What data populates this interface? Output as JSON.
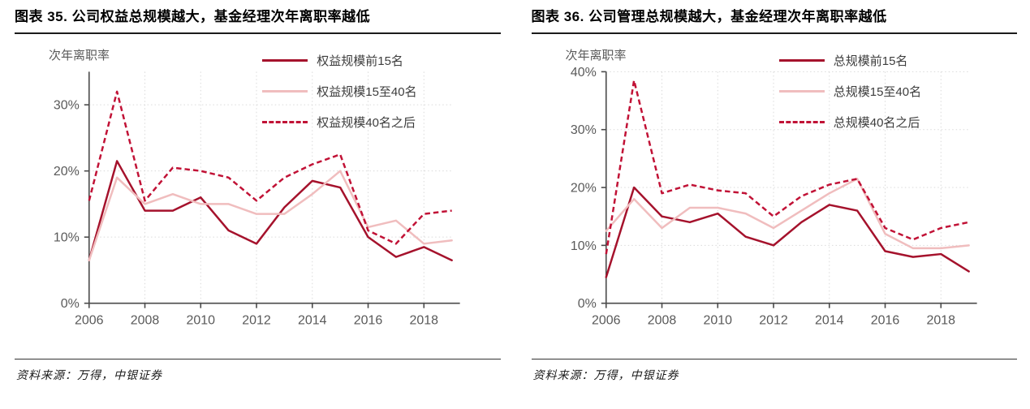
{
  "theme": {
    "background": "#ffffff",
    "title_color": "#000000",
    "rule_color": "#1c1c1c",
    "axis_line_color": "#4a4a4a",
    "tick_text_color": "#595959",
    "grid_color": "#dadada",
    "dark_red": "#A5122C",
    "light_pink": "#F0BDBE",
    "bright_red": "#C11236"
  },
  "panels": [
    {
      "source_label": "资料来源：万得，中银证券"
    },
    {
      "source_label": "资料来源：万得，中银证券"
    }
  ],
  "chart_data": [
    {
      "type": "line",
      "title": "图表 35. 公司权益总规模越大，基金经理次年离职率越低",
      "ylabel": "次年离职率",
      "xlabel": "",
      "x": [
        2006,
        2007,
        2008,
        2009,
        2010,
        2011,
        2012,
        2013,
        2014,
        2015,
        2016,
        2017,
        2018,
        2019
      ],
      "xtick_labels": [
        "2006",
        "2008",
        "2010",
        "2012",
        "2014",
        "2016",
        "2018"
      ],
      "yticks": [
        0,
        10,
        20,
        30
      ],
      "ytick_suffix": "%",
      "ylim": [
        0,
        35
      ],
      "grid": "dotted",
      "legend_position": "top-right",
      "series": [
        {
          "name": "权益规模前15名",
          "color": "#A5122C",
          "style": "solid",
          "values": [
            6.5,
            21.5,
            14,
            14,
            16,
            11,
            9,
            14.5,
            18.5,
            17.5,
            10,
            7,
            8.5,
            6.5
          ]
        },
        {
          "name": "权益规模15至40名",
          "color": "#F0BDBE",
          "style": "solid",
          "values": [
            6.5,
            19,
            15,
            16.5,
            15,
            15,
            13.5,
            13.5,
            16.5,
            20,
            11.5,
            12.5,
            9,
            9.5
          ]
        },
        {
          "name": "权益规模40名之后",
          "color": "#C11236",
          "style": "dashed",
          "values": [
            15.5,
            32,
            15.5,
            20.5,
            20,
            19,
            15.5,
            19,
            21,
            22.5,
            11,
            9,
            13.5,
            14
          ]
        }
      ]
    },
    {
      "type": "line",
      "title": "图表 36. 公司管理总规模越大，基金经理次年离职率越低",
      "ylabel": "次年离职率",
      "xlabel": "",
      "x": [
        2006,
        2007,
        2008,
        2009,
        2010,
        2011,
        2012,
        2013,
        2014,
        2015,
        2016,
        2017,
        2018,
        2019
      ],
      "xtick_labels": [
        "2006",
        "2008",
        "2010",
        "2012",
        "2014",
        "2016",
        "2018"
      ],
      "yticks": [
        0,
        10,
        20,
        30,
        40
      ],
      "ytick_suffix": "%",
      "ylim": [
        0,
        40
      ],
      "grid": "dotted",
      "legend_position": "top-right",
      "series": [
        {
          "name": "总规模前15名",
          "color": "#A5122C",
          "style": "solid",
          "values": [
            4.5,
            20,
            15,
            14,
            15.5,
            11.5,
            10,
            14,
            17,
            16,
            9,
            8,
            8.5,
            5.5
          ]
        },
        {
          "name": "总规模15至40名",
          "color": "#F0BDBE",
          "style": "solid",
          "values": [
            12.5,
            18,
            13,
            16.5,
            16.5,
            15.5,
            13,
            16,
            19,
            21.5,
            12,
            9.5,
            9.5,
            10
          ]
        },
        {
          "name": "总规模40名之后",
          "color": "#C11236",
          "style": "dashed",
          "values": [
            8.5,
            38.5,
            19,
            20.5,
            19.5,
            19,
            15,
            18.5,
            20.5,
            21.5,
            13,
            11,
            13,
            14
          ]
        }
      ]
    }
  ]
}
